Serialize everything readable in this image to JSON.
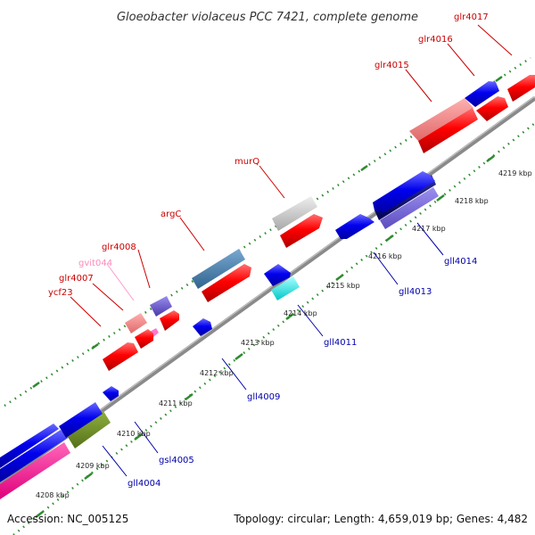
{
  "title": "Gloeobacter violaceus PCC 7421, complete genome",
  "accession": "Accession: NC_005125",
  "summary": "Topology: circular; Length: 4,659,019 bp; Genes: 4,482",
  "colors": {
    "background": "#ffffff",
    "backbone": "#808080",
    "tick_dots": "#2e8b2e",
    "forward_label": "#cc0000",
    "reverse_label": "#0000aa",
    "pseudo_label": "#ff88bb"
  },
  "kbp_ticks": [
    "4208 kbp",
    "4209 kbp",
    "4210 kbp",
    "4211 kbp",
    "4212 kbp",
    "4213 kbp",
    "4214 kbp",
    "4215 kbp",
    "4216 kbp",
    "4217 kbp",
    "4218 kbp",
    "4219 kbp"
  ],
  "forward_labels": [
    "ycf23",
    "glr4007",
    "gvit044",
    "glr4008",
    "argC",
    "murQ",
    "glr4015",
    "glr4016",
    "glr4017"
  ],
  "reverse_labels": [
    "gll4004",
    "gsl4005",
    "gll4009",
    "gll4011",
    "gll4013",
    "gll4014"
  ],
  "genes": [
    {
      "name": "gll4004 (blue, reverse)",
      "color": "#0000ee"
    },
    {
      "name": "gsl4005 (olive, reverse)",
      "color": "#6b8e23"
    },
    {
      "name": "pink pseudo (forward)",
      "color": "#ff1493"
    },
    {
      "name": "ycf23 (red, forward)",
      "color": "#ee0000"
    },
    {
      "name": "glr4007 (salmon, forward)",
      "color": "#f08080"
    },
    {
      "name": "gvit044 (pink, forward)",
      "color": "#ff88cc"
    },
    {
      "name": "glr4008 (slateblue, forward)",
      "color": "#6a5acd"
    },
    {
      "name": "argC (steelblue, forward)",
      "color": "#4682b4"
    },
    {
      "name": "murQ (lightgray, forward)",
      "color": "#c8c8c8"
    },
    {
      "name": "gll4011 (cyan, reverse)",
      "color": "#00eeee"
    },
    {
      "name": "gll4014 (navy, reverse)",
      "color": "#000080"
    },
    {
      "name": "glr4015 (salmon, forward)",
      "color": "#f08080"
    }
  ]
}
